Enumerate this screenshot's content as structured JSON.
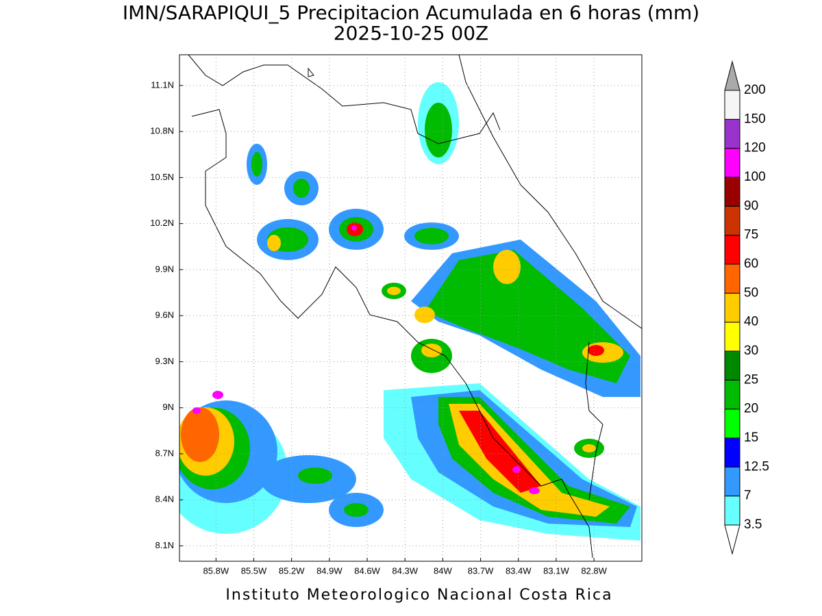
{
  "chart_data": {
    "type": "map",
    "title": "IMN/SARAPIQUI_5 Precipitacion Acumulada en 6 horas (mm)",
    "subtitle": "2025-10-25 00Z",
    "footer": "Instituto Meteorologico Nacional Costa Rica",
    "xlim": [
      -86.09,
      -82.42
    ],
    "ylim": [
      8.0,
      11.3
    ],
    "xticks": [
      {
        "value": -85.8,
        "label": "85.8W"
      },
      {
        "value": -85.5,
        "label": "85.5W"
      },
      {
        "value": -85.2,
        "label": "85.2W"
      },
      {
        "value": -84.9,
        "label": "84.9W"
      },
      {
        "value": -84.6,
        "label": "84.6W"
      },
      {
        "value": -84.3,
        "label": "84.3W"
      },
      {
        "value": -84.0,
        "label": "84W"
      },
      {
        "value": -83.7,
        "label": "83.7W"
      },
      {
        "value": -83.4,
        "label": "83.4W"
      },
      {
        "value": -83.1,
        "label": "83.1W"
      },
      {
        "value": -82.8,
        "label": "82.8W"
      }
    ],
    "yticks": [
      {
        "value": 8.1,
        "label": "8.1N"
      },
      {
        "value": 8.4,
        "label": "8.4N"
      },
      {
        "value": 8.7,
        "label": "8.7N"
      },
      {
        "value": 9.0,
        "label": "9N"
      },
      {
        "value": 9.3,
        "label": "9.3N"
      },
      {
        "value": 9.6,
        "label": "9.6N"
      },
      {
        "value": 9.9,
        "label": "9.9N"
      },
      {
        "value": 10.2,
        "label": "10.2N"
      },
      {
        "value": 10.5,
        "label": "10.5N"
      },
      {
        "value": 10.8,
        "label": "10.8N"
      },
      {
        "value": 11.1,
        "label": "11.1N"
      }
    ],
    "grid": true,
    "colorbar": {
      "levels": [
        3.5,
        7,
        12.5,
        15,
        20,
        25,
        30,
        40,
        50,
        60,
        75,
        90,
        100,
        120,
        150,
        200
      ],
      "colors": [
        "#66ffff",
        "#3399ff",
        "#0000ff",
        "#00ff00",
        "#00bb00",
        "#008800",
        "#ffff00",
        "#ffcc00",
        "#ff6600",
        "#ff0000",
        "#cc3300",
        "#990000",
        "#ff00ff",
        "#9933cc",
        "#f5f5f5"
      ],
      "over_color": "#aaaaaa",
      "under_color": "#ffffff"
    }
  }
}
